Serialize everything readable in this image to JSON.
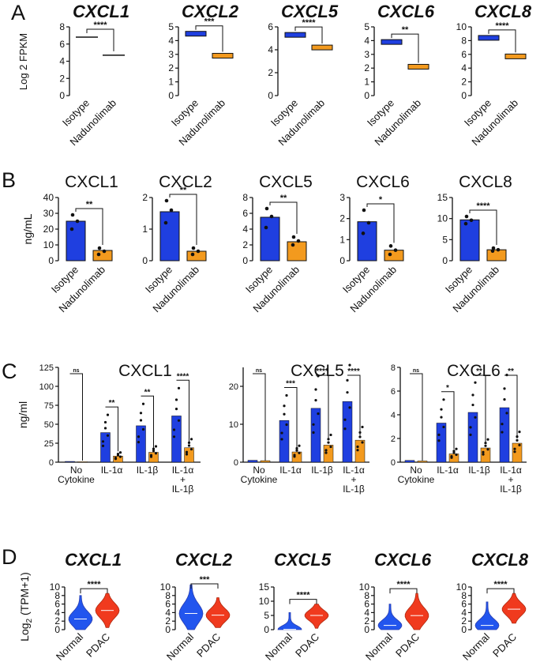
{
  "figure": {
    "panel_letters": [
      "A",
      "B",
      "C",
      "D"
    ],
    "colors": {
      "control": "#1f3fe0",
      "treated": "#f39a1e",
      "normal": "#2255ee",
      "pdac": "#f03a1e",
      "axis": "#111111"
    }
  },
  "chart_data": [
    {
      "panel": "A",
      "type": "bar",
      "style": "box",
      "ylabel": "Log 2 FPKM",
      "categories": [
        "Isotype",
        "Nadunolimab"
      ],
      "charts": [
        {
          "title": "CXCL1",
          "values": [
            6.8,
            4.7
          ],
          "ylim": [
            0,
            8
          ],
          "yticks": [
            0,
            2,
            4,
            6,
            8
          ],
          "significance": "****"
        },
        {
          "title": "CXCL2",
          "values": [
            4.5,
            2.9
          ],
          "ylim": [
            0,
            5
          ],
          "yticks": [
            0,
            1,
            2,
            3,
            4,
            5
          ],
          "significance": "***"
        },
        {
          "title": "CXCL5",
          "values": [
            5.3,
            4.2
          ],
          "ylim": [
            0,
            6
          ],
          "yticks": [
            0,
            2,
            4,
            6
          ],
          "significance": "****"
        },
        {
          "title": "CXCL6",
          "values": [
            3.9,
            2.1
          ],
          "ylim": [
            0,
            5
          ],
          "yticks": [
            0,
            1,
            2,
            3,
            4,
            5
          ],
          "significance": "**"
        },
        {
          "title": "CXCL8",
          "values": [
            8.4,
            5.7
          ],
          "ylim": [
            0,
            10
          ],
          "yticks": [
            0,
            2,
            4,
            6,
            8,
            10
          ],
          "significance": "****"
        }
      ]
    },
    {
      "panel": "B",
      "type": "bar",
      "ylabel": "ng/mL",
      "categories": [
        "Isotype",
        "Nadunolimab"
      ],
      "charts": [
        {
          "title": "CXCL1",
          "values": [
            25,
            6.5
          ],
          "points": [
            [
              29,
              25,
              20
            ],
            [
              8,
              6,
              4
            ]
          ],
          "ylim": [
            0,
            40
          ],
          "yticks": [
            0,
            10,
            20,
            30,
            40
          ],
          "significance": "**"
        },
        {
          "title": "CXCL2",
          "values": [
            1.55,
            0.3
          ],
          "points": [
            [
              1.9,
              1.6,
              1.2
            ],
            [
              0.4,
              0.3,
              0.2
            ]
          ],
          "ylim": [
            0,
            2
          ],
          "yticks": [
            0,
            1,
            2
          ],
          "significance": "**"
        },
        {
          "title": "CXCL5",
          "values": [
            5.5,
            2.4
          ],
          "points": [
            [
              6.6,
              5.6,
              4.2
            ],
            [
              3.0,
              2.5,
              2.0
            ]
          ],
          "ylim": [
            0,
            8
          ],
          "yticks": [
            0,
            2,
            4,
            6,
            8
          ],
          "significance": "**"
        },
        {
          "title": "CXCL6",
          "values": [
            1.85,
            0.5
          ],
          "points": [
            [
              2.4,
              1.8,
              1.3
            ],
            [
              0.7,
              0.5,
              0.3
            ]
          ],
          "ylim": [
            0,
            3
          ],
          "yticks": [
            0,
            1,
            2,
            3
          ],
          "significance": "*"
        },
        {
          "title": "CXCL8",
          "values": [
            9.7,
            2.6
          ],
          "points": [
            [
              10.5,
              9.6,
              8.8
            ],
            [
              3.0,
              2.6,
              2.3
            ]
          ],
          "ylim": [
            0,
            15
          ],
          "yticks": [
            0,
            5,
            10,
            15
          ],
          "significance": "****"
        }
      ]
    },
    {
      "panel": "C",
      "type": "bar",
      "ylabel": "ng/ml",
      "categories": [
        [
          "No",
          "Cytokine"
        ],
        [
          "IL-1α"
        ],
        [
          "IL-1β"
        ],
        [
          "IL-1α",
          "+",
          "IL-1β"
        ]
      ],
      "charts": [
        {
          "title": "CXCL1",
          "ylim": [
            0,
            125
          ],
          "yticks": [
            0,
            25,
            50,
            75,
            100,
            125
          ],
          "series": [
            {
              "name": "Isotype",
              "values": [
                1,
                39,
                48,
                61
              ]
            },
            {
              "name": "Nadunolimab",
              "values": [
                0.5,
                8,
                13,
                19
              ]
            }
          ],
          "significance": [
            "ns",
            "**",
            "**",
            "****"
          ]
        },
        {
          "title": "CXCL5",
          "ylim": [
            0,
            25
          ],
          "yticks": [
            0,
            10,
            20
          ],
          "series": [
            {
              "name": "Isotype",
              "values": [
                0.5,
                11,
                14.2,
                16
              ]
            },
            {
              "name": "Nadunolimab",
              "values": [
                0.4,
                2.7,
                4.5,
                5.8
              ]
            }
          ],
          "significance": [
            "ns",
            "***",
            "****",
            "****"
          ]
        },
        {
          "title": "CXCL6",
          "ylim": [
            0,
            8
          ],
          "yticks": [
            0,
            2,
            4,
            6,
            8
          ],
          "series": [
            {
              "name": "Isotype",
              "values": [
                0.15,
                3.3,
                4.2,
                4.6
              ]
            },
            {
              "name": "Nadunolimab",
              "values": [
                0.1,
                0.7,
                1.2,
                1.6
              ]
            }
          ],
          "significance": [
            "ns",
            "*",
            "**",
            "**"
          ]
        }
      ]
    },
    {
      "panel": "D",
      "type": "scatter",
      "style": "violin",
      "ylabel": "Log2 (TPM+1)",
      "categories": [
        "Normal",
        "PDAC"
      ],
      "charts": [
        {
          "title": "CXCL1",
          "medians": [
            2.5,
            4.5
          ],
          "ranges": [
            [
              0,
              8
            ],
            [
              0.5,
              8.5
            ]
          ],
          "ylim": [
            0,
            10
          ],
          "yticks": [
            0,
            2,
            4,
            6,
            8,
            10
          ],
          "significance": "****"
        },
        {
          "title": "CXCL2",
          "medians": [
            3.8,
            3.4
          ],
          "ranges": [
            [
              0,
              10.5
            ],
            [
              0.5,
              7.5
            ]
          ],
          "ylim": [
            0,
            10
          ],
          "yticks": [
            0,
            2,
            4,
            6,
            8,
            10
          ],
          "significance": "***"
        },
        {
          "title": "CXCL5",
          "medians": [
            0.1,
            5.0
          ],
          "ranges": [
            [
              0,
              6
            ],
            [
              0.5,
              9
            ]
          ],
          "ylim": [
            0,
            15
          ],
          "yticks": [
            0,
            5,
            10,
            15
          ],
          "significance": "****"
        },
        {
          "title": "CXCL6",
          "medians": [
            1.0,
            3.3
          ],
          "ranges": [
            [
              0,
              6
            ],
            [
              0,
              8.5
            ]
          ],
          "ylim": [
            0,
            10
          ],
          "yticks": [
            0,
            2,
            4,
            6,
            8,
            10
          ],
          "significance": "****"
        },
        {
          "title": "CXCL8",
          "medians": [
            1.0,
            4.8
          ],
          "ranges": [
            [
              0,
              6.5
            ],
            [
              1.5,
              8.5
            ]
          ],
          "ylim": [
            0,
            10
          ],
          "yticks": [
            0,
            2,
            4,
            6,
            8,
            10
          ],
          "significance": "****"
        }
      ]
    }
  ]
}
